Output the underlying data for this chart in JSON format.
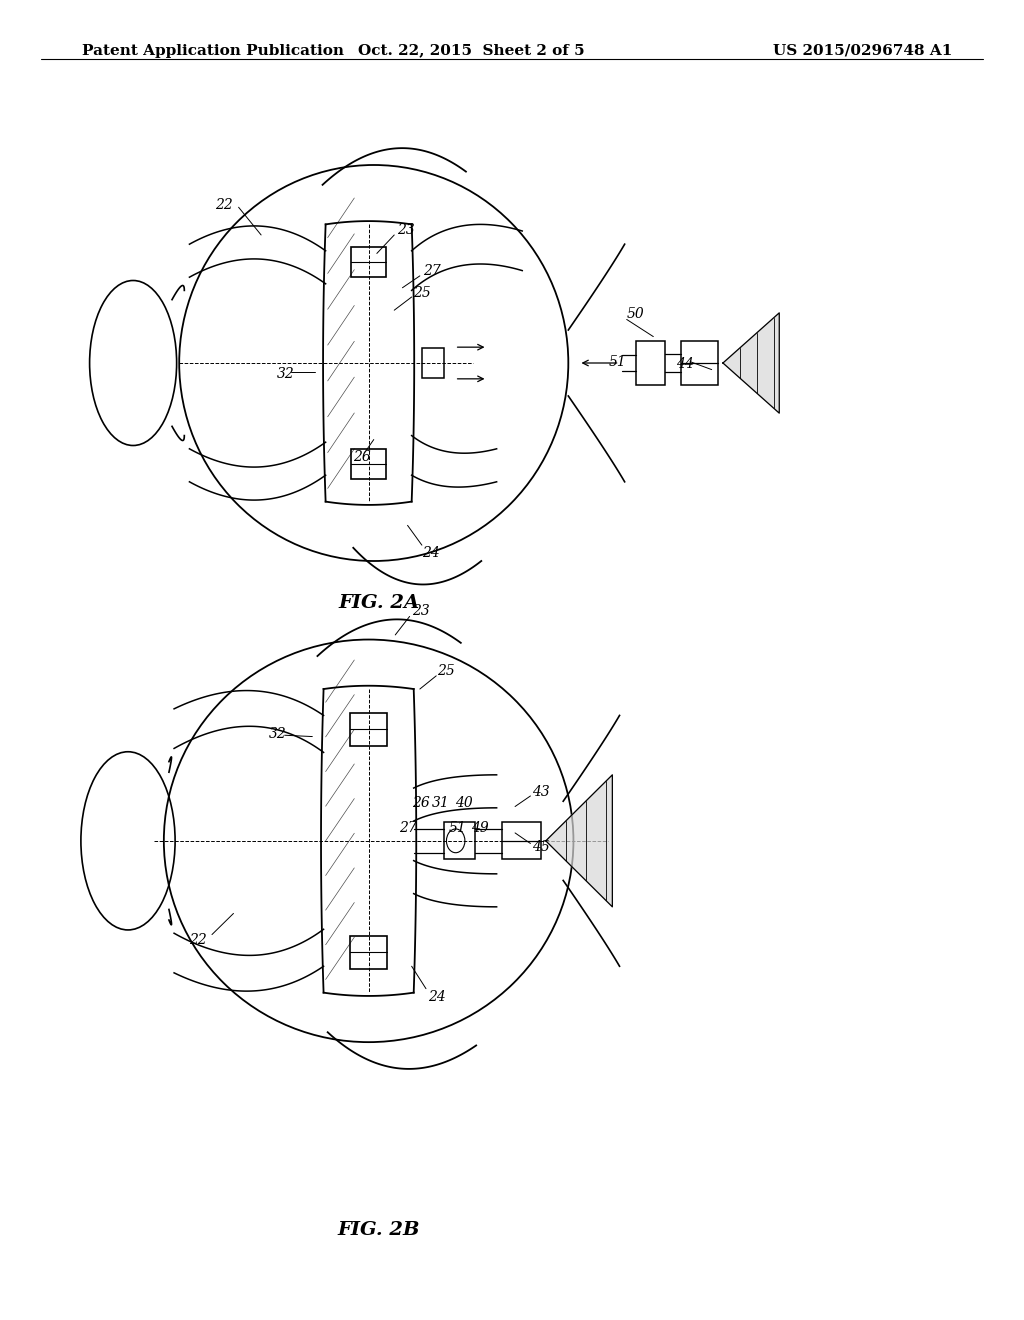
{
  "background_color": "#ffffff",
  "header_left": "Patent Application Publication",
  "header_middle": "Oct. 22, 2015  Sheet 2 of 5",
  "header_right": "US 2015/0296748 A1",
  "header_fontsize": 11,
  "fig2a_caption": "FIG. 2A",
  "fig2b_caption": "FIG. 2B",
  "caption_fontsize": 14,
  "label_fontsize": 10
}
